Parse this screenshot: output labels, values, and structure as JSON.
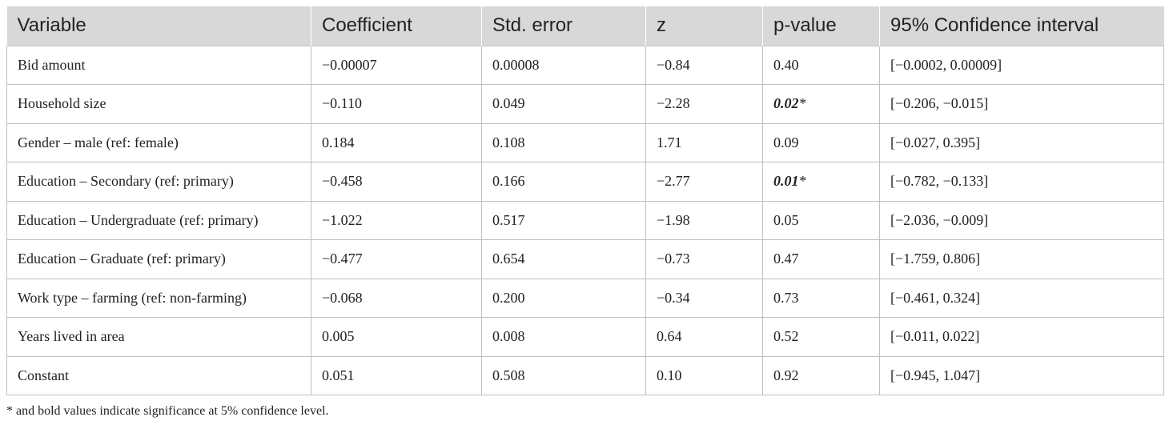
{
  "table": {
    "headers": [
      "Variable",
      "Coefficient",
      "Std. error",
      "z",
      "p-value",
      "95% Confidence interval"
    ],
    "rows": [
      {
        "variable": "Bid amount",
        "coefficient": "−0.00007",
        "std_error": "0.00008",
        "z": "−0.84",
        "p_value": "0.40",
        "significant": false,
        "ci": "[−0.0002, 0.00009]"
      },
      {
        "variable": "Household size",
        "coefficient": "−0.110",
        "std_error": "0.049",
        "z": "−2.28",
        "p_value": "0.02",
        "significant": true,
        "ci": "[−0.206, −0.015]"
      },
      {
        "variable": "Gender – male (ref: female)",
        "coefficient": "0.184",
        "std_error": "0.108",
        "z": "1.71",
        "p_value": "0.09",
        "significant": false,
        "ci": "[−0.027, 0.395]"
      },
      {
        "variable": "Education – Secondary (ref: primary)",
        "coefficient": "−0.458",
        "std_error": "0.166",
        "z": "−2.77",
        "p_value": "0.01",
        "significant": true,
        "ci": "[−0.782, −0.133]"
      },
      {
        "variable": "Education – Undergraduate (ref: primary)",
        "coefficient": "−1.022",
        "std_error": "0.517",
        "z": "−1.98",
        "p_value": "0.05",
        "significant": false,
        "ci": "[−2.036, −0.009]"
      },
      {
        "variable": "Education – Graduate (ref: primary)",
        "coefficient": "−0.477",
        "std_error": "0.654",
        "z": "−0.73",
        "p_value": "0.47",
        "significant": false,
        "ci": "[−1.759, 0.806]"
      },
      {
        "variable": "Work type – farming (ref: non-farming)",
        "coefficient": "−0.068",
        "std_error": "0.200",
        "z": "−0.34",
        "p_value": "0.73",
        "significant": false,
        "ci": "[−0.461, 0.324]"
      },
      {
        "variable": "Years lived in area",
        "coefficient": "0.005",
        "std_error": "0.008",
        "z": "0.64",
        "p_value": "0.52",
        "significant": false,
        "ci": "[−0.011, 0.022]"
      },
      {
        "variable": "Constant",
        "coefficient": "0.051",
        "std_error": "0.508",
        "z": "0.10",
        "p_value": "0.92",
        "significant": false,
        "ci": "[−0.945, 1.047]"
      }
    ],
    "significance_marker": "*"
  },
  "footnote": "* and bold values indicate significance at 5% confidence level.",
  "colors": {
    "header_bg": "#d8d8d8",
    "border": "#bfbfbf",
    "text": "#222222"
  }
}
